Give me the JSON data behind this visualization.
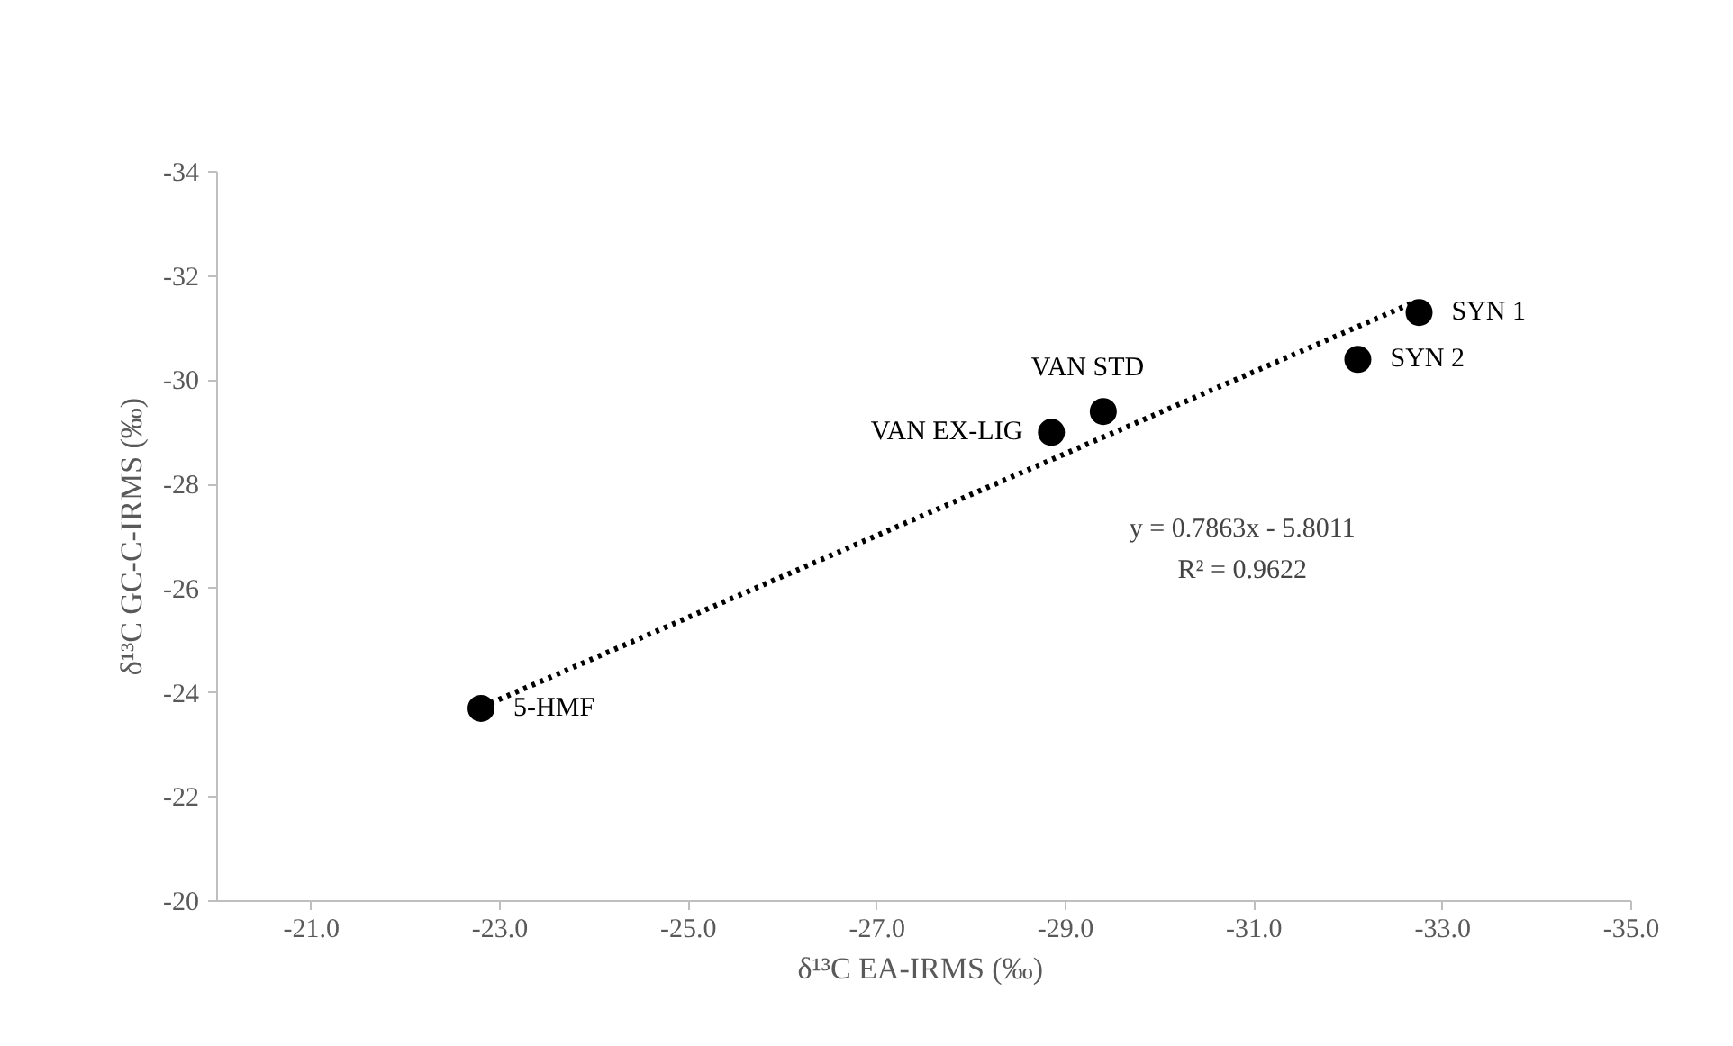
{
  "chart_data": {
    "type": "scatter",
    "xlabel": "δ¹³C EA-IRMS  (‰)",
    "ylabel": "δ¹³C GC-C-IRMS (‰)",
    "xlim": [
      -20,
      -35
    ],
    "xticks": [
      {
        "value": -21,
        "label": "-21.0"
      },
      {
        "value": -23,
        "label": "-23.0"
      },
      {
        "value": -25,
        "label": "-25.0"
      },
      {
        "value": -27,
        "label": "-27.0"
      },
      {
        "value": -29,
        "label": "-29.0"
      },
      {
        "value": -31,
        "label": "-31.0"
      },
      {
        "value": -33,
        "label": "-33.0"
      },
      {
        "value": -35,
        "label": "-35.0"
      }
    ],
    "ylim": [
      -20,
      -34
    ],
    "yticks": [
      -20,
      -22,
      -24,
      -26,
      -28,
      -30,
      -32,
      -34
    ],
    "grid": false,
    "marker": "circle",
    "series": [
      {
        "color": "#000000",
        "x": [
          -22.8,
          -28.85,
          -29.4,
          -32.1,
          -32.75
        ],
        "values": [
          -23.7,
          -29.0,
          -29.4,
          -30.4,
          -31.3
        ]
      },
      {
        "type": "line",
        "color": "#000000",
        "line_style": "dotted",
        "marker": "none",
        "x": [
          -22.9,
          -32.7
        ],
        "values": [
          -23.8,
          -31.5
        ]
      }
    ],
    "annotations": [
      {
        "text": "5-HMF",
        "x": -22.8,
        "y": -23.7
      },
      {
        "text": "VAN EX-LIG",
        "x": -28.85,
        "y": -29.0
      },
      {
        "text": "VAN STD",
        "x": -29.4,
        "y": -29.4
      },
      {
        "text": "SYN 2",
        "x": -32.1,
        "y": -30.4
      },
      {
        "text": "SYN 1",
        "x": -32.75,
        "y": -31.3
      },
      "y = 0.7863x - 5.8011",
      "R² = 0.9622"
    ]
  }
}
